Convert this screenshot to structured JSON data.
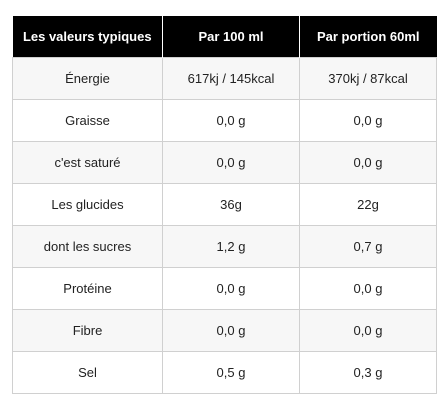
{
  "table": {
    "headers": [
      "Les valeurs typiques",
      "Par 100 ml",
      "Par portion 60ml"
    ],
    "rows": [
      [
        "Énergie",
        "617kj / 145kcal",
        "370kj / 87kcal"
      ],
      [
        "Graisse",
        "0,0 g",
        "0,0 g"
      ],
      [
        "c'est saturé",
        "0,0 g",
        "0,0 g"
      ],
      [
        "Les glucides",
        "36g",
        "22g"
      ],
      [
        "dont les sucres",
        "1,2 g",
        "0,7 g"
      ],
      [
        "Protéine",
        "0,0 g",
        "0,0 g"
      ],
      [
        "Fibre",
        "0,0 g",
        "0,0 g"
      ],
      [
        "Sel",
        "0,5 g",
        "0,3 g"
      ]
    ]
  }
}
